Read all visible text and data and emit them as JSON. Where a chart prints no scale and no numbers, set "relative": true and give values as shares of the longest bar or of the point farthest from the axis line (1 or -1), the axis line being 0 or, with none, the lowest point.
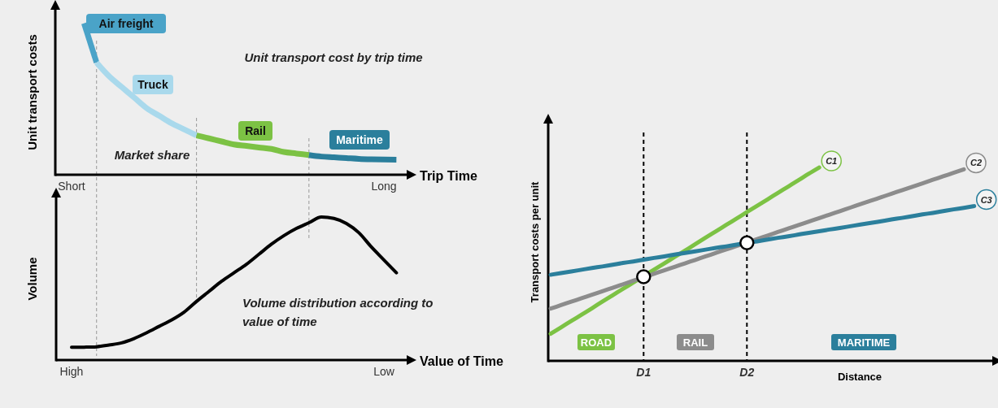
{
  "chart_data": [
    {
      "type": "line",
      "relative": true,
      "xlabel": "Trip Time",
      "ylabel": "Unit transport costs",
      "annotations": [
        "Unit transport cost by trip time",
        "Market share"
      ],
      "categories": [
        null,
        "Short",
        null,
        null,
        null,
        null,
        null,
        null,
        null,
        null,
        null,
        null,
        null,
        null,
        null,
        null,
        null,
        null,
        null,
        null,
        null,
        null,
        null,
        null,
        null,
        null,
        "Long",
        null
      ],
      "series": [
        {
          "name": "Air freight",
          "color": "#4aa3c8",
          "values": [
            null,
            null,
            1,
            0.74,
            null,
            null,
            null,
            null,
            null,
            null,
            null,
            null,
            null,
            null,
            null,
            null,
            null,
            null,
            null,
            null,
            null,
            null,
            null,
            null,
            null,
            null,
            null,
            null
          ]
        },
        {
          "name": "Truck",
          "color": "#a9d9ec",
          "values": [
            null,
            null,
            null,
            0.74,
            0.65,
            0.58,
            0.51,
            0.44,
            0.39,
            0.34,
            0.3,
            0.26,
            null,
            null,
            null,
            null,
            null,
            null,
            null,
            null,
            null,
            null,
            null,
            null,
            null,
            null,
            null,
            null
          ]
        },
        {
          "name": "Rail",
          "color": "#7cc244",
          "values": [
            null,
            null,
            null,
            null,
            null,
            null,
            null,
            null,
            null,
            null,
            null,
            0.26,
            0.24,
            0.22,
            0.2,
            0.19,
            0.18,
            0.17,
            0.15,
            0.14,
            0.13,
            null,
            null,
            null,
            null,
            null,
            null,
            null
          ]
        },
        {
          "name": "Maritime",
          "color": "#2b7f9c",
          "values": [
            null,
            null,
            null,
            null,
            null,
            null,
            null,
            null,
            null,
            null,
            null,
            null,
            null,
            null,
            null,
            null,
            null,
            null,
            null,
            null,
            0.13,
            0.12,
            0.115,
            0.11,
            0.105,
            0.102,
            0.1,
            0.099
          ]
        }
      ]
    },
    {
      "type": "line",
      "relative": true,
      "xlabel": "Value of Time",
      "ylabel": "Volume",
      "annotations": [
        "Volume distribution according to value of time"
      ],
      "categories": [
        null,
        "High",
        null,
        null,
        null,
        null,
        null,
        null,
        null,
        null,
        null,
        null,
        null,
        null,
        null,
        null,
        null,
        null,
        null,
        null,
        null,
        null,
        null,
        null,
        null,
        null,
        "Low",
        null
      ],
      "series": [
        {
          "color": "#000000",
          "values": [
            null,
            0.089,
            0.09,
            0.093,
            0.105,
            0.12,
            0.15,
            0.19,
            0.235,
            0.28,
            0.335,
            0.41,
            0.48,
            0.55,
            0.61,
            0.67,
            0.74,
            0.81,
            0.87,
            0.92,
            0.96,
            1,
            0.99,
            0.955,
            0.89,
            0.79,
            0.7,
            0.61
          ]
        }
      ]
    },
    {
      "type": "line",
      "relative": true,
      "xlabel": "Distance",
      "ylabel": "Transport costs per unit",
      "annotations": [
        "ROAD",
        "RAIL",
        "MARITIME"
      ],
      "categories": [
        null,
        null,
        null,
        null,
        null,
        null,
        null,
        null,
        null,
        "D1",
        null,
        null,
        null,
        null,
        null,
        null,
        null,
        null,
        null,
        "D2",
        null,
        null,
        null,
        null,
        null,
        null,
        null,
        null,
        null,
        null,
        null,
        null,
        null,
        null,
        null,
        null,
        null,
        null,
        null,
        null,
        null,
        null
      ],
      "ref_lines": [
        {
          "axis": "x",
          "value": "D1",
          "color": "#000000",
          "line_style": "dashed"
        },
        {
          "axis": "x",
          "value": "D2",
          "color": "#000000",
          "line_style": "dashed"
        }
      ],
      "series": [
        {
          "name": "C1",
          "color": "#7cc244",
          "values": [
            0.14,
            0.173,
            0.206,
            0.239,
            0.272,
            0.306,
            0.339,
            0.372,
            0.405,
            0.438,
            0.471,
            0.504,
            0.537,
            0.57,
            0.603,
            0.637,
            0.67,
            0.703,
            0.736,
            0.769,
            0.802,
            0.835,
            0.868,
            0.901,
            0.934,
            0.968,
            1,
            null,
            null,
            null,
            null,
            null,
            null,
            null,
            null,
            null,
            null,
            null,
            null,
            null,
            null,
            null
          ]
        },
        {
          "name": "C2",
          "color": "#8c8c8c",
          "values": [
            0.27,
            0.288,
            0.306,
            0.324,
            0.342,
            0.36,
            0.378,
            0.396,
            0.414,
            0.432,
            0.45,
            0.468,
            0.486,
            0.504,
            0.522,
            0.54,
            0.558,
            0.576,
            0.594,
            0.612,
            0.63,
            0.648,
            0.666,
            0.684,
            0.702,
            0.72,
            0.738,
            0.756,
            0.774,
            0.792,
            0.81,
            0.828,
            0.846,
            0.864,
            0.882,
            0.9,
            0.918,
            0.936,
            0.954,
            0.972,
            0.99,
            null
          ]
        },
        {
          "name": "C3",
          "color": "#2b7f9c",
          "values": [
            0.445,
            0.454,
            0.462,
            0.471,
            0.48,
            0.488,
            0.497,
            0.506,
            0.514,
            0.523,
            0.532,
            0.54,
            0.549,
            0.558,
            0.566,
            0.575,
            0.584,
            0.592,
            0.601,
            0.61,
            0.618,
            0.627,
            0.636,
            0.644,
            0.653,
            0.662,
            0.67,
            0.679,
            0.687,
            0.696,
            0.705,
            0.713,
            0.722,
            0.731,
            0.739,
            0.748,
            0.757,
            0.765,
            0.774,
            0.783,
            0.791,
            0.8
          ]
        },
        {
          "type": "scatter",
          "marker": "circle",
          "color": "#ffffff",
          "x": [
            "D1",
            "D2"
          ],
          "values": [
            0.435,
            0.61
          ]
        }
      ]
    }
  ]
}
